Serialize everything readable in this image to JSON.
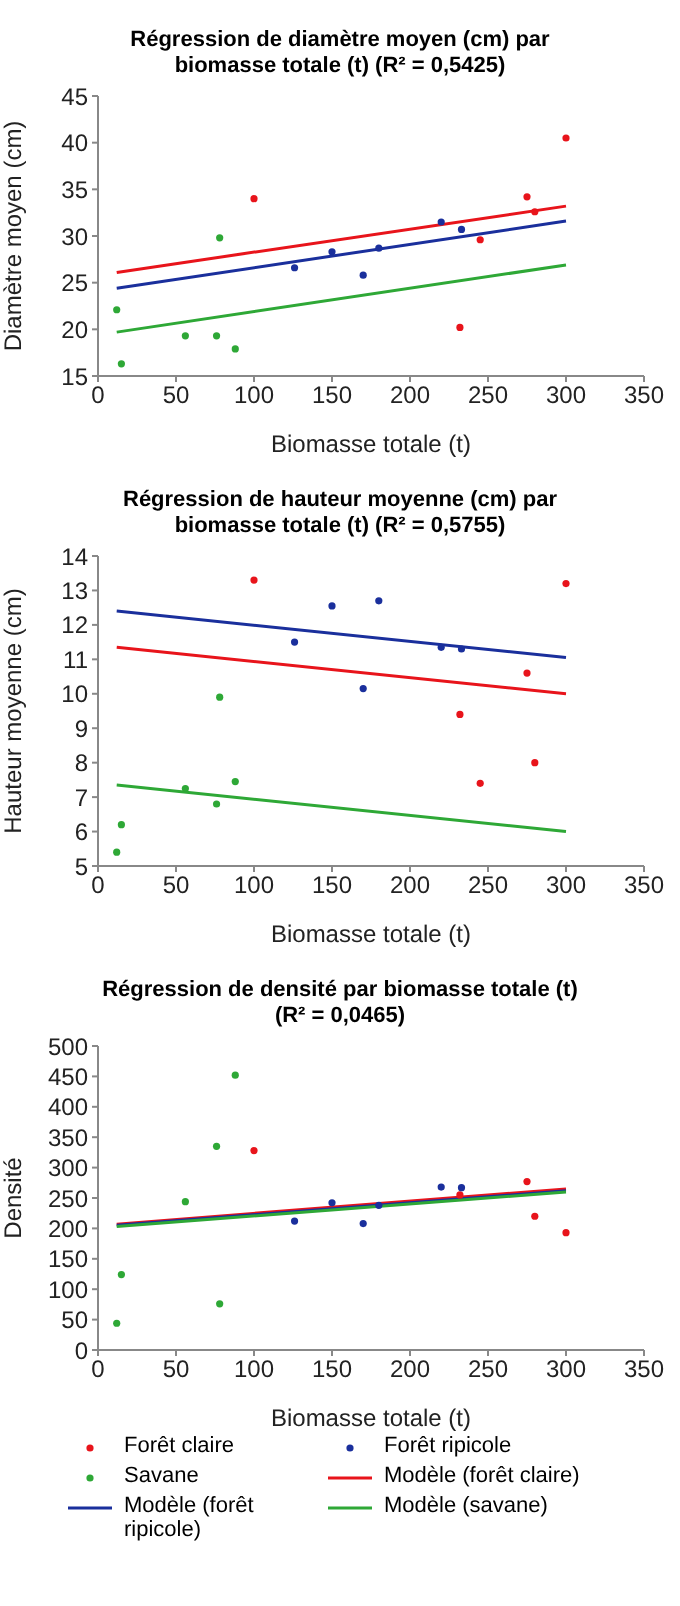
{
  "chart_data": [
    {
      "type": "scatter",
      "title": "Régression de diamètre moyen (cm) par biomasse totale (t) (R² = 0,5425)",
      "xlabel": "Biomasse totale (t)",
      "ylabel": "Diamètre moyen (cm)",
      "xlim": [
        0,
        350
      ],
      "xticks": [
        0,
        50,
        100,
        150,
        200,
        250,
        300,
        350
      ],
      "ylim": [
        15,
        45
      ],
      "yticks": [
        15,
        20,
        25,
        30,
        35,
        40,
        45
      ],
      "grid": false,
      "legend": false,
      "series": [
        {
          "type": "scatter",
          "marker": "circle",
          "color": "#e8141b",
          "x": [
            100,
            232,
            245,
            275,
            280,
            300
          ],
          "values": [
            34,
            20.2,
            29.6,
            34.2,
            32.6,
            40.5
          ]
        },
        {
          "type": "scatter",
          "marker": "circle",
          "color": "#1a2f9c",
          "x": [
            126,
            150,
            170,
            180,
            220,
            233
          ],
          "values": [
            26.6,
            28.3,
            25.8,
            28.7,
            31.5,
            30.7
          ]
        },
        {
          "type": "scatter",
          "marker": "circle",
          "color": "#2ea836",
          "x": [
            12,
            15,
            56,
            76,
            78,
            88
          ],
          "values": [
            22.1,
            16.3,
            19.3,
            19.3,
            29.8,
            17.9
          ]
        },
        {
          "type": "line",
          "marker": "none",
          "color": "#e8141b",
          "x": [
            12,
            300
          ],
          "values": [
            26.1,
            33.2
          ]
        },
        {
          "type": "line",
          "marker": "none",
          "color": "#1a2f9c",
          "x": [
            12,
            300
          ],
          "values": [
            24.4,
            31.6
          ]
        },
        {
          "type": "line",
          "marker": "none",
          "color": "#2ea836",
          "x": [
            12,
            300
          ],
          "values": [
            19.7,
            26.9
          ]
        }
      ]
    },
    {
      "type": "scatter",
      "title": "Régression de hauteur moyenne (cm) par biomasse totale (t) (R² = 0,5755)",
      "xlabel": "Biomasse totale (t)",
      "ylabel": "Hauteur moyenne (cm)",
      "xlim": [
        0,
        350
      ],
      "xticks": [
        0,
        50,
        100,
        150,
        200,
        250,
        300,
        350
      ],
      "ylim": [
        5,
        14
      ],
      "yticks": [
        5,
        6,
        7,
        8,
        9,
        10,
        11,
        12,
        13,
        14
      ],
      "grid": false,
      "legend": false,
      "series": [
        {
          "type": "scatter",
          "marker": "circle",
          "color": "#e8141b",
          "x": [
            100,
            232,
            245,
            275,
            280,
            300
          ],
          "values": [
            13.3,
            9.4,
            7.4,
            10.6,
            8,
            13.2
          ]
        },
        {
          "type": "scatter",
          "marker": "circle",
          "color": "#1a2f9c",
          "x": [
            126,
            150,
            170,
            180,
            220,
            233
          ],
          "values": [
            11.5,
            12.55,
            10.15,
            12.7,
            11.35,
            11.3
          ]
        },
        {
          "type": "scatter",
          "marker": "circle",
          "color": "#2ea836",
          "x": [
            12,
            15,
            56,
            76,
            78,
            88
          ],
          "values": [
            5.4,
            6.2,
            7.25,
            6.8,
            9.9,
            7.45
          ]
        },
        {
          "type": "line",
          "marker": "none",
          "color": "#e8141b",
          "x": [
            12,
            300
          ],
          "values": [
            11.35,
            10
          ]
        },
        {
          "type": "line",
          "marker": "none",
          "color": "#1a2f9c",
          "x": [
            12,
            300
          ],
          "values": [
            12.4,
            11.05
          ]
        },
        {
          "type": "line",
          "marker": "none",
          "color": "#2ea836",
          "x": [
            12,
            300
          ],
          "values": [
            7.35,
            6
          ]
        }
      ]
    },
    {
      "type": "scatter",
      "title": "Régression de densité par biomasse totale (t) (R² = 0,0465)",
      "xlabel": "Biomasse totale (t)",
      "ylabel": "Densité",
      "xlim": [
        0,
        350
      ],
      "xticks": [
        0,
        50,
        100,
        150,
        200,
        250,
        300,
        350
      ],
      "ylim": [
        0,
        500
      ],
      "yticks": [
        0,
        50,
        100,
        150,
        200,
        250,
        300,
        350,
        400,
        450,
        500
      ],
      "grid": false,
      "legend": "bottom",
      "series": [
        {
          "name": "Forêt claire",
          "type": "scatter",
          "marker": "circle",
          "color": "#e8141b",
          "x": [
            100,
            232,
            275,
            280,
            300
          ],
          "values": [
            328,
            255,
            277,
            220,
            193
          ]
        },
        {
          "name": "Forêt ripicole",
          "type": "scatter",
          "marker": "circle",
          "color": "#1a2f9c",
          "x": [
            126,
            150,
            170,
            180,
            220,
            233
          ],
          "values": [
            212,
            242,
            208,
            238,
            268,
            267
          ]
        },
        {
          "name": "Savane",
          "type": "scatter",
          "marker": "circle",
          "color": "#2ea836",
          "x": [
            12,
            15,
            56,
            76,
            78,
            88
          ],
          "values": [
            44,
            124,
            244,
            335,
            76,
            452
          ]
        },
        {
          "name": "Modèle (forêt claire)",
          "type": "line",
          "marker": "none",
          "color": "#e8141b",
          "x": [
            12,
            300
          ],
          "values": [
            207,
            265
          ]
        },
        {
          "name": "Modèle (forêt ripicole)",
          "type": "line",
          "marker": "none",
          "color": "#1a2f9c",
          "x": [
            12,
            300
          ],
          "values": [
            205,
            262
          ]
        },
        {
          "name": "Modèle (savane)",
          "type": "line",
          "marker": "none",
          "color": "#2ea836",
          "x": [
            12,
            300
          ],
          "values": [
            203,
            260
          ]
        }
      ]
    }
  ]
}
